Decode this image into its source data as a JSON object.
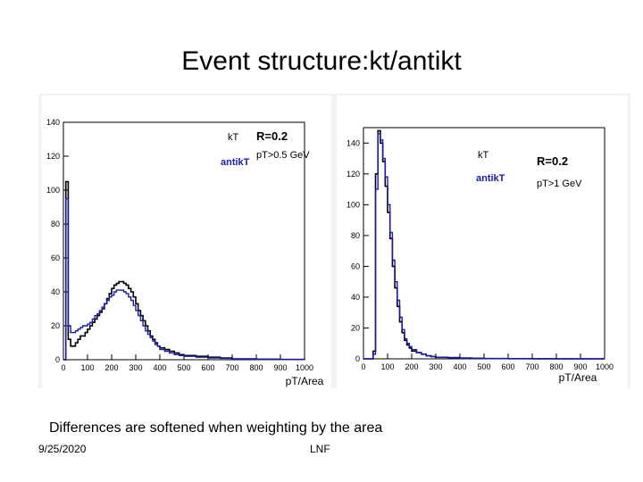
{
  "slide": {
    "title": "Event structure:kt/antikt",
    "caption": "Differences are softened when weighting by the area",
    "date": "9/25/2020",
    "org": "LNF"
  },
  "colors": {
    "kt": "#000000",
    "antikt": "#1a1aa8",
    "frame": "#000000"
  },
  "chart_data": [
    {
      "type": "line",
      "title": "",
      "xlabel": "pT/Area",
      "ylabel": "",
      "xlim": [
        0,
        1000
      ],
      "ylim": [
        0,
        140
      ],
      "xticks": [
        0,
        100,
        200,
        300,
        400,
        500,
        600,
        700,
        800,
        900,
        1000
      ],
      "yticks": [
        0,
        20,
        40,
        60,
        80,
        100,
        120,
        140
      ],
      "legend": {
        "kt": "kT",
        "antikt": "antikT",
        "radius": "R=0.2",
        "cut": "pT>0.5 GeV"
      },
      "series": [
        {
          "name": "kT",
          "x": [
            0,
            10,
            20,
            30,
            40,
            50,
            60,
            70,
            80,
            90,
            100,
            110,
            120,
            130,
            140,
            150,
            160,
            170,
            180,
            190,
            200,
            210,
            220,
            230,
            240,
            250,
            260,
            270,
            280,
            290,
            300,
            310,
            320,
            330,
            340,
            350,
            360,
            370,
            380,
            390,
            400,
            420,
            440,
            460,
            480,
            500,
            550,
            600,
            650,
            700,
            800,
            900,
            1000
          ],
          "y": [
            0,
            105,
            12,
            8,
            8,
            10,
            12,
            14,
            14,
            16,
            18,
            20,
            22,
            24,
            26,
            28,
            30,
            33,
            36,
            39,
            42,
            44,
            45,
            46,
            46,
            45,
            44,
            42,
            40,
            37,
            33,
            29,
            26,
            23,
            20,
            17,
            14,
            12,
            10,
            8,
            7,
            6,
            5,
            4,
            3,
            2.5,
            2,
            1.5,
            1,
            0.5,
            0.3,
            0.2,
            0.1
          ]
        },
        {
          "name": "antikT",
          "x": [
            0,
            10,
            20,
            30,
            40,
            50,
            60,
            70,
            80,
            90,
            100,
            110,
            120,
            130,
            140,
            150,
            160,
            170,
            180,
            190,
            200,
            210,
            220,
            230,
            240,
            250,
            260,
            270,
            280,
            290,
            300,
            310,
            320,
            330,
            340,
            350,
            360,
            370,
            380,
            390,
            400,
            420,
            440,
            460,
            480,
            500,
            550,
            600,
            650,
            700,
            800,
            900,
            1000
          ],
          "y": [
            0,
            95,
            20,
            16,
            16,
            17,
            18,
            19,
            20,
            20,
            21,
            22,
            24,
            26,
            27,
            29,
            31,
            33,
            35,
            37,
            38,
            40,
            41,
            41,
            41,
            40,
            39,
            37,
            35,
            32,
            29,
            26,
            23,
            20,
            17,
            15,
            13,
            11,
            9,
            8,
            6,
            5,
            4,
            3,
            2.5,
            2,
            1.5,
            1,
            0.8,
            0.4,
            0.2,
            0.1,
            0.05
          ]
        }
      ]
    },
    {
      "type": "line",
      "title": "",
      "xlabel": "pT/Area",
      "ylabel": "",
      "xlim": [
        0,
        1000
      ],
      "ylim": [
        0,
        150
      ],
      "xticks": [
        0,
        100,
        200,
        300,
        400,
        500,
        600,
        700,
        800,
        900,
        1000
      ],
      "yticks": [
        0,
        20,
        40,
        60,
        80,
        100,
        120,
        140
      ],
      "legend": {
        "kt": "kT",
        "antikt": "antikT",
        "radius": "R=0.2",
        "cut": "pT>1 GeV"
      },
      "series": [
        {
          "name": "kT",
          "x": [
            0,
            10,
            20,
            30,
            40,
            50,
            60,
            70,
            80,
            90,
            100,
            110,
            120,
            130,
            140,
            150,
            160,
            170,
            180,
            190,
            200,
            220,
            240,
            260,
            280,
            300,
            350,
            400,
            450,
            500,
            600,
            700,
            800,
            900,
            1000
          ],
          "y": [
            0,
            0,
            0,
            0,
            5,
            120,
            148,
            140,
            128,
            112,
            95,
            78,
            60,
            46,
            34,
            24,
            17,
            12,
            9,
            7,
            5,
            4,
            3,
            2,
            1.5,
            1,
            0.8,
            0.5,
            0.3,
            0.2,
            0.1,
            0.05,
            0,
            0,
            0
          ]
        },
        {
          "name": "antikT",
          "x": [
            0,
            10,
            20,
            30,
            40,
            50,
            60,
            70,
            80,
            90,
            100,
            110,
            120,
            130,
            140,
            150,
            160,
            170,
            180,
            190,
            200,
            220,
            240,
            260,
            280,
            300,
            350,
            400,
            450,
            500,
            600,
            700,
            800,
            900,
            1000
          ],
          "y": [
            0,
            0,
            0,
            0,
            3,
            110,
            146,
            142,
            130,
            118,
            100,
            82,
            64,
            50,
            38,
            27,
            19,
            13,
            10,
            8,
            6,
            4,
            3,
            2,
            1.5,
            1,
            0.8,
            0.5,
            0.3,
            0.2,
            0.1,
            0.05,
            0,
            0,
            0
          ]
        }
      ]
    }
  ]
}
